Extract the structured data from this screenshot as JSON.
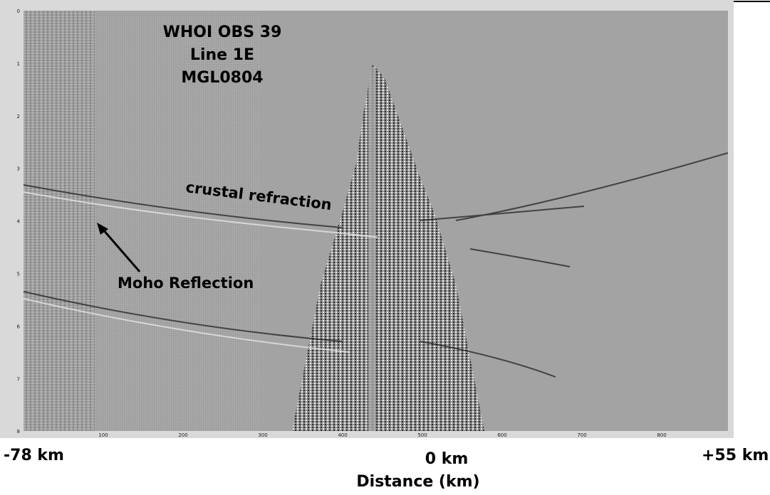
{
  "figure": {
    "title_lines": [
      "WHOI OBS 39",
      "Line 1E",
      "MGL0804"
    ],
    "annotations": {
      "crustal": "crustal refraction",
      "moho": "Moho Reflection"
    },
    "y_ticks": [
      "0",
      "1",
      "2",
      "3",
      "4",
      "5",
      "6",
      "7",
      "8"
    ],
    "x_ticks": [
      "100",
      "200",
      "300",
      "400",
      "500",
      "600",
      "700",
      "800"
    ],
    "footer": {
      "left": "-78 km",
      "center": "0 km",
      "right": "+55 km",
      "axis_label": "Distance (km)"
    }
  }
}
